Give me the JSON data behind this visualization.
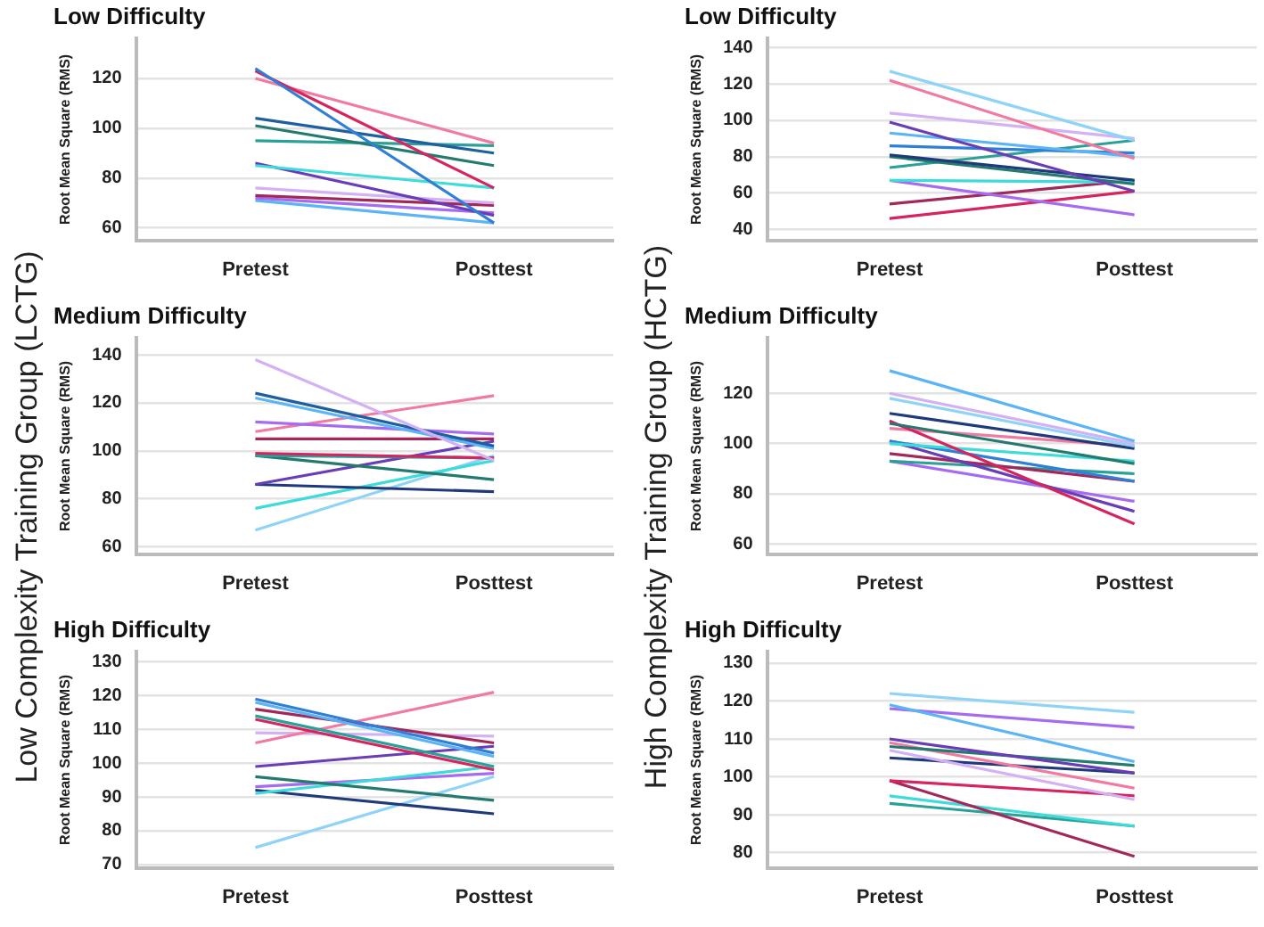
{
  "chart_data": [
    {
      "type": "line",
      "title": "Low Difficulty",
      "ylabel": "Root Mean Square (RMS)",
      "categories": [
        "Pretest",
        "Posttest"
      ],
      "ylim": [
        55,
        136
      ],
      "yticks": [
        60,
        80,
        100,
        120
      ],
      "grid": "y",
      "marker": "none",
      "annotations": [
        "Low Complexity Training Group (LCTG)"
      ],
      "series": [
        {
          "color": "#2f7fd6",
          "values": [
            124,
            62
          ]
        },
        {
          "color": "#d6245f",
          "values": [
            123,
            76
          ]
        },
        {
          "color": "#f07aa0",
          "values": [
            120,
            94
          ]
        },
        {
          "color": "#1f5f9f",
          "values": [
            104,
            90
          ]
        },
        {
          "color": "#247a6e",
          "values": [
            101,
            85
          ]
        },
        {
          "color": "#2aa198",
          "values": [
            95,
            93
          ]
        },
        {
          "color": "#3ddbd9",
          "values": [
            85,
            76
          ]
        },
        {
          "color": "#6a3db8",
          "values": [
            86,
            65
          ]
        },
        {
          "color": "#d4b0f5",
          "values": [
            76,
            70
          ]
        },
        {
          "color": "#a3285a",
          "values": [
            73,
            69
          ]
        },
        {
          "color": "#a66cf0",
          "values": [
            72,
            66
          ]
        },
        {
          "color": "#5ab4f5",
          "values": [
            71,
            62
          ]
        }
      ]
    },
    {
      "type": "line",
      "title": "Low Difficulty",
      "ylabel": "Root Mean Square (RMS)",
      "categories": [
        "Pretest",
        "Posttest"
      ],
      "ylim": [
        34,
        145
      ],
      "yticks": [
        40,
        60,
        80,
        100,
        120,
        140
      ],
      "grid": "y",
      "marker": "none",
      "annotations": [
        "High Complexity Training Group (HCTG)"
      ],
      "series": [
        {
          "color": "#8fd3f7",
          "values": [
            127,
            89
          ]
        },
        {
          "color": "#f07aa0",
          "values": [
            122,
            79
          ]
        },
        {
          "color": "#d4b0f5",
          "values": [
            104,
            90
          ]
        },
        {
          "color": "#6a3db8",
          "values": [
            99,
            61
          ]
        },
        {
          "color": "#5ab4f5",
          "values": [
            93,
            80
          ]
        },
        {
          "color": "#2f7fd6",
          "values": [
            86,
            82
          ]
        },
        {
          "color": "#1e3a7a",
          "values": [
            81,
            67
          ]
        },
        {
          "color": "#247a6e",
          "values": [
            80,
            65
          ]
        },
        {
          "color": "#2aa198",
          "values": [
            74,
            89
          ]
        },
        {
          "color": "#3ddbd9",
          "values": [
            67,
            66
          ]
        },
        {
          "color": "#a66cf0",
          "values": [
            67,
            48
          ]
        },
        {
          "color": "#a3285a",
          "values": [
            54,
            67
          ]
        },
        {
          "color": "#d6245f",
          "values": [
            46,
            61
          ]
        }
      ]
    },
    {
      "type": "line",
      "title": "Medium Difficulty",
      "ylabel": "Root Mean Square (RMS)",
      "categories": [
        "Pretest",
        "Posttest"
      ],
      "ylim": [
        57,
        147
      ],
      "yticks": [
        60,
        80,
        100,
        120,
        140
      ],
      "grid": "y",
      "marker": "none",
      "series": [
        {
          "color": "#d4b0f5",
          "values": [
            138,
            96
          ]
        },
        {
          "color": "#1f5f9f",
          "values": [
            124,
            102
          ]
        },
        {
          "color": "#5ab4f5",
          "values": [
            122,
            101
          ]
        },
        {
          "color": "#a66cf0",
          "values": [
            112,
            107
          ]
        },
        {
          "color": "#f07aa0",
          "values": [
            108,
            123
          ]
        },
        {
          "color": "#a3285a",
          "values": [
            105,
            105
          ]
        },
        {
          "color": "#d6245f",
          "values": [
            99,
            97
          ]
        },
        {
          "color": "#2aa198",
          "values": [
            98,
            97
          ]
        },
        {
          "color": "#247a6e",
          "values": [
            98,
            88
          ]
        },
        {
          "color": "#6a3db8",
          "values": [
            86,
            104
          ]
        },
        {
          "color": "#1e3a7a",
          "values": [
            86,
            83
          ]
        },
        {
          "color": "#3ddbd9",
          "values": [
            76,
            96
          ]
        },
        {
          "color": "#8fd3f7",
          "values": [
            67,
            98
          ]
        }
      ]
    },
    {
      "type": "line",
      "title": "Medium Difficulty",
      "ylabel": "Root Mean Square (RMS)",
      "categories": [
        "Pretest",
        "Posttest"
      ],
      "ylim": [
        56,
        142
      ],
      "yticks": [
        60,
        80,
        100,
        120
      ],
      "grid": "y",
      "marker": "none",
      "series": [
        {
          "color": "#5ab4f5",
          "values": [
            129,
            101
          ]
        },
        {
          "color": "#d4b0f5",
          "values": [
            120,
            100
          ]
        },
        {
          "color": "#8fd3f7",
          "values": [
            118,
            99
          ]
        },
        {
          "color": "#1e3a7a",
          "values": [
            112,
            98
          ]
        },
        {
          "color": "#247a6e",
          "values": [
            108,
            92
          ]
        },
        {
          "color": "#d6245f",
          "values": [
            109,
            68
          ]
        },
        {
          "color": "#f07aa0",
          "values": [
            106,
            99
          ]
        },
        {
          "color": "#3ddbd9",
          "values": [
            100,
            93
          ]
        },
        {
          "color": "#2f7fd6",
          "values": [
            101,
            85
          ]
        },
        {
          "color": "#6a3db8",
          "values": [
            101,
            73
          ]
        },
        {
          "color": "#a3285a",
          "values": [
            96,
            85
          ]
        },
        {
          "color": "#2aa198",
          "values": [
            93,
            88
          ]
        },
        {
          "color": "#a66cf0",
          "values": [
            93,
            77
          ]
        }
      ]
    },
    {
      "type": "line",
      "title": "High Difficulty",
      "ylabel": "Root Mean Square (RMS)",
      "categories": [
        "Pretest",
        "Posttest"
      ],
      "ylim": [
        69,
        133
      ],
      "yticks": [
        70,
        80,
        90,
        100,
        110,
        120,
        130
      ],
      "grid": "y",
      "marker": "none",
      "series": [
        {
          "color": "#2f7fd6",
          "values": [
            119,
            103
          ]
        },
        {
          "color": "#5ab4f5",
          "values": [
            118,
            102
          ]
        },
        {
          "color": "#a3285a",
          "values": [
            116,
            106
          ]
        },
        {
          "color": "#d6245f",
          "values": [
            113,
            98
          ]
        },
        {
          "color": "#2aa198",
          "values": [
            114,
            99
          ]
        },
        {
          "color": "#f07aa0",
          "values": [
            106,
            121
          ]
        },
        {
          "color": "#d4b0f5",
          "values": [
            109,
            108
          ]
        },
        {
          "color": "#6a3db8",
          "values": [
            99,
            105
          ]
        },
        {
          "color": "#247a6e",
          "values": [
            96,
            89
          ]
        },
        {
          "color": "#3ddbd9",
          "values": [
            91,
            99
          ]
        },
        {
          "color": "#a66cf0",
          "values": [
            93,
            97
          ]
        },
        {
          "color": "#1e3a7a",
          "values": [
            92,
            85
          ]
        },
        {
          "color": "#8fd3f7",
          "values": [
            75,
            96
          ]
        }
      ]
    },
    {
      "type": "line",
      "title": "High Difficulty",
      "ylabel": "Root Mean Square (RMS)",
      "categories": [
        "Pretest",
        "Posttest"
      ],
      "ylim": [
        76,
        133
      ],
      "yticks": [
        80,
        90,
        100,
        110,
        120,
        130
      ],
      "grid": "y",
      "marker": "none",
      "series": [
        {
          "color": "#8fd3f7",
          "values": [
            122,
            117
          ]
        },
        {
          "color": "#5ab4f5",
          "values": [
            119,
            104
          ]
        },
        {
          "color": "#a66cf0",
          "values": [
            118,
            113
          ]
        },
        {
          "color": "#6a3db8",
          "values": [
            110,
            101
          ]
        },
        {
          "color": "#247a6e",
          "values": [
            108,
            103
          ]
        },
        {
          "color": "#f07aa0",
          "values": [
            109,
            97
          ]
        },
        {
          "color": "#d4b0f5",
          "values": [
            107,
            94
          ]
        },
        {
          "color": "#1e3a7a",
          "values": [
            105,
            101
          ]
        },
        {
          "color": "#d6245f",
          "values": [
            99,
            95
          ]
        },
        {
          "color": "#a3285a",
          "values": [
            99,
            79
          ]
        },
        {
          "color": "#3ddbd9",
          "values": [
            95,
            87
          ]
        },
        {
          "color": "#2aa198",
          "values": [
            93,
            87
          ]
        }
      ]
    }
  ]
}
